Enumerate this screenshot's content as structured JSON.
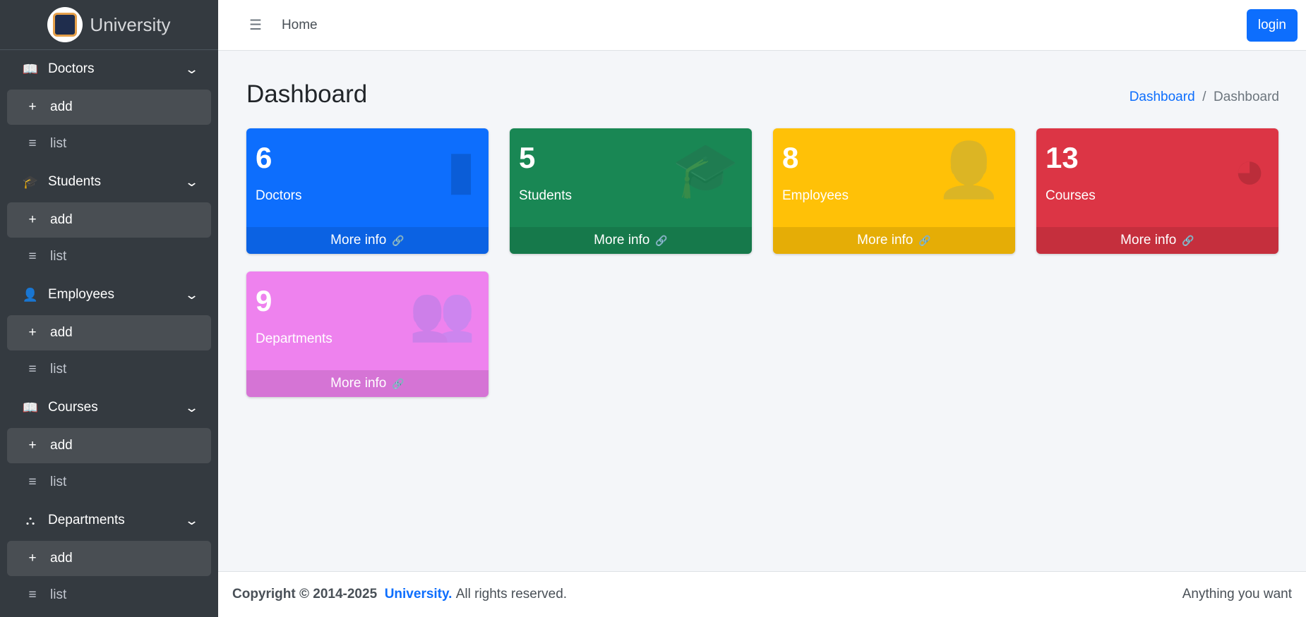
{
  "brand": {
    "name": "University"
  },
  "sidebar": {
    "groups": [
      {
        "label": "Doctors",
        "icon": "book-icon",
        "glyph": "📖",
        "add": "add",
        "list": "list"
      },
      {
        "label": "Students",
        "icon": "graduation-cap-icon",
        "glyph": "🎓",
        "add": "add",
        "list": "list"
      },
      {
        "label": "Employees",
        "icon": "user-icon",
        "glyph": "👤",
        "add": "add",
        "list": "list"
      },
      {
        "label": "Courses",
        "icon": "book-open-icon",
        "glyph": "📖",
        "add": "add",
        "list": "list"
      },
      {
        "label": "Departments",
        "icon": "sitemap-icon",
        "glyph": "⛬",
        "add": "add",
        "list": "list"
      }
    ]
  },
  "topnav": {
    "home": "Home",
    "login": "login"
  },
  "page": {
    "title": "Dashboard",
    "breadcrumb": [
      "Dashboard",
      "Dashboard"
    ]
  },
  "cards": [
    {
      "value": "6",
      "label": "Doctors",
      "more": "More info",
      "color": "#0d6efd",
      "icon": "book-icon",
      "glyph": "▮"
    },
    {
      "value": "5",
      "label": "Students",
      "more": "More info",
      "color": "#198754",
      "icon": "graduation-cap-icon",
      "glyph": "🎓"
    },
    {
      "value": "8",
      "label": "Employees",
      "more": "More info",
      "color": "#ffc107",
      "icon": "user-plus-icon",
      "glyph": "👤"
    },
    {
      "value": "13",
      "label": "Courses",
      "more": "More info",
      "color": "#dc3545",
      "icon": "pie-chart-icon",
      "glyph": "◕"
    },
    {
      "value": "9",
      "label": "Departments",
      "more": "More info",
      "color": "#ee82ee",
      "icon": "users-icon",
      "glyph": "👥"
    }
  ],
  "footer": {
    "copyright": "Copyright © 2014-2025",
    "brand": "University.",
    "rights": "All rights reserved.",
    "right": "Anything you want"
  }
}
